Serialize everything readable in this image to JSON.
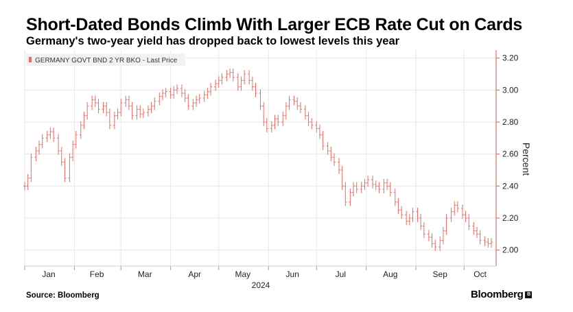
{
  "header": {
    "title": "Short-Dated Bonds Climb With Larger ECB Rate Cut on Cards",
    "subtitle": "Germany's two-year yield has dropped back to lowest levels this year"
  },
  "footer": {
    "source": "Source: Bloomberg",
    "brand": "Bloomberg"
  },
  "colors": {
    "series": "#e26d66",
    "grid": "#e6e6e6",
    "axis": "#d9534f"
  },
  "chart_data": {
    "type": "line",
    "legend": "GERMANY GOVT BND 2 YR BKO - Last Price",
    "legend_position": "top-left",
    "ylabel": "Percent",
    "yaxis_side": "right",
    "ylim": [
      1.9,
      3.25
    ],
    "yticks": [
      2.0,
      2.2,
      2.4,
      2.6,
      2.8,
      3.0,
      3.2
    ],
    "ytick_labels": [
      "2.00",
      "2.20",
      "2.40",
      "2.60",
      "2.80",
      "3.00",
      "3.20"
    ],
    "x_month_labels": [
      "Jan",
      "Feb",
      "Mar",
      "Apr",
      "May",
      "Jun",
      "Jul",
      "Aug",
      "Sep",
      "Oct"
    ],
    "x_year_label": "2024",
    "grid": true,
    "series": [
      {
        "name": "GERMANY GOVT BND 2 YR BKO - Last Price",
        "x": [
          "2024-01-01",
          "2024-01-03",
          "2024-01-05",
          "2024-01-08",
          "2024-01-10",
          "2024-01-12",
          "2024-01-15",
          "2024-01-17",
          "2024-01-19",
          "2024-01-22",
          "2024-01-24",
          "2024-01-26",
          "2024-01-29",
          "2024-01-31",
          "2024-02-02",
          "2024-02-05",
          "2024-02-07",
          "2024-02-09",
          "2024-02-12",
          "2024-02-14",
          "2024-02-16",
          "2024-02-19",
          "2024-02-21",
          "2024-02-23",
          "2024-02-26",
          "2024-02-28",
          "2024-03-01",
          "2024-03-04",
          "2024-03-06",
          "2024-03-08",
          "2024-03-11",
          "2024-03-13",
          "2024-03-15",
          "2024-03-18",
          "2024-03-20",
          "2024-03-22",
          "2024-03-25",
          "2024-03-27",
          "2024-03-29",
          "2024-04-01",
          "2024-04-03",
          "2024-04-05",
          "2024-04-08",
          "2024-04-10",
          "2024-04-12",
          "2024-04-15",
          "2024-04-17",
          "2024-04-19",
          "2024-04-22",
          "2024-04-24",
          "2024-04-26",
          "2024-04-29",
          "2024-05-01",
          "2024-05-03",
          "2024-05-06",
          "2024-05-08",
          "2024-05-10",
          "2024-05-13",
          "2024-05-15",
          "2024-05-17",
          "2024-05-20",
          "2024-05-22",
          "2024-05-24",
          "2024-05-27",
          "2024-05-29",
          "2024-05-31",
          "2024-06-03",
          "2024-06-05",
          "2024-06-07",
          "2024-06-10",
          "2024-06-12",
          "2024-06-14",
          "2024-06-17",
          "2024-06-19",
          "2024-06-21",
          "2024-06-24",
          "2024-06-26",
          "2024-06-28",
          "2024-07-01",
          "2024-07-03",
          "2024-07-05",
          "2024-07-08",
          "2024-07-10",
          "2024-07-12",
          "2024-07-15",
          "2024-07-17",
          "2024-07-19",
          "2024-07-22",
          "2024-07-24",
          "2024-07-26",
          "2024-07-29",
          "2024-07-31",
          "2024-08-02",
          "2024-08-05",
          "2024-08-07",
          "2024-08-09",
          "2024-08-12",
          "2024-08-14",
          "2024-08-16",
          "2024-08-19",
          "2024-08-21",
          "2024-08-23",
          "2024-08-26",
          "2024-08-28",
          "2024-08-30",
          "2024-09-02",
          "2024-09-04",
          "2024-09-06",
          "2024-09-09",
          "2024-09-11",
          "2024-09-13",
          "2024-09-16",
          "2024-09-18",
          "2024-09-20",
          "2024-09-23",
          "2024-09-25",
          "2024-09-27",
          "2024-09-30",
          "2024-10-02",
          "2024-10-04",
          "2024-10-07",
          "2024-10-09",
          "2024-10-11",
          "2024-10-14",
          "2024-10-16",
          "2024-10-18"
        ],
        "values": [
          2.4,
          2.45,
          2.58,
          2.62,
          2.66,
          2.7,
          2.72,
          2.74,
          2.7,
          2.62,
          2.55,
          2.45,
          2.58,
          2.66,
          2.72,
          2.78,
          2.84,
          2.9,
          2.94,
          2.92,
          2.88,
          2.9,
          2.86,
          2.78,
          2.84,
          2.86,
          2.92,
          2.94,
          2.9,
          2.84,
          2.88,
          2.85,
          2.86,
          2.88,
          2.9,
          2.93,
          2.96,
          2.98,
          2.99,
          2.97,
          3.0,
          3.01,
          2.98,
          2.95,
          2.9,
          2.92,
          2.94,
          2.95,
          2.97,
          2.99,
          3.02,
          3.04,
          3.06,
          3.08,
          3.1,
          3.11,
          3.08,
          3.02,
          3.06,
          3.1,
          3.06,
          3.02,
          2.98,
          2.9,
          2.8,
          2.76,
          2.78,
          2.82,
          2.8,
          2.84,
          2.9,
          2.94,
          2.93,
          2.9,
          2.88,
          2.84,
          2.8,
          2.78,
          2.76,
          2.72,
          2.65,
          2.62,
          2.58,
          2.55,
          2.5,
          2.4,
          2.3,
          2.36,
          2.4,
          2.38,
          2.4,
          2.42,
          2.44,
          2.41,
          2.4,
          2.38,
          2.42,
          2.4,
          2.36,
          2.3,
          2.25,
          2.22,
          2.18,
          2.2,
          2.24,
          2.2,
          2.15,
          2.1,
          2.08,
          2.04,
          2.02,
          2.06,
          2.12,
          2.2,
          2.24,
          2.28,
          2.26,
          2.22,
          2.2,
          2.15,
          2.12,
          2.1,
          2.06,
          2.05,
          2.04,
          2.05
        ]
      }
    ]
  }
}
